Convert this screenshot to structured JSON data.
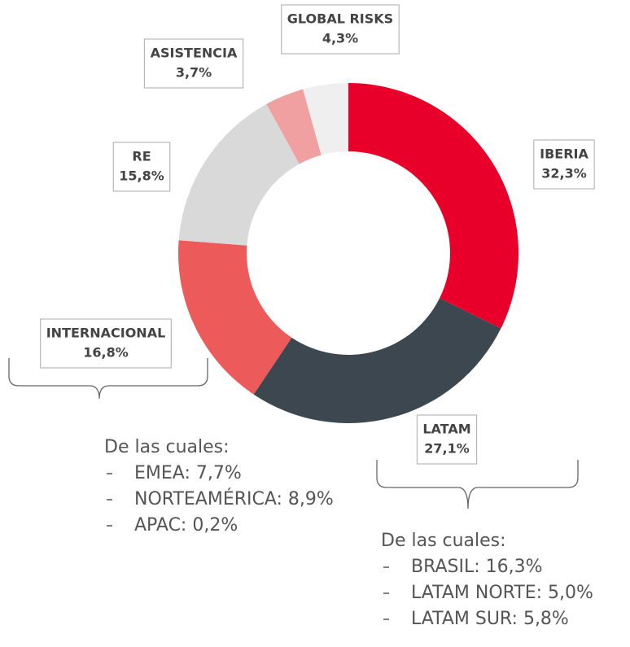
{
  "chart_data": {
    "type": "donut",
    "categories": [
      "IBERIA",
      "LATAM",
      "INTERNACIONAL",
      "RE",
      "ASISTENCIA",
      "GLOBAL RISKS"
    ],
    "values": [
      32.3,
      27.1,
      16.8,
      15.8,
      3.7,
      4.3
    ],
    "value_labels": [
      "32,3%",
      "27,1%",
      "16,8%",
      "15,8%",
      "3,7%",
      "4,3%"
    ],
    "colors": [
      "#e8002a",
      "#3d4750",
      "#ec5a5a",
      "#d9d9d9",
      "#f0a0a0",
      "#efefef"
    ],
    "breakdowns": [
      {
        "heading": "De las cuales:",
        "items": [
          "EMEA: 7,7%",
          "NORTEAMÉRICA: 8,9%",
          "APAC: 0,2%"
        ]
      },
      {
        "heading": "De las cuales:",
        "items": [
          "BRASIL: 16,3%",
          "LATAM NORTE: 5,0%",
          "LATAM SUR: 5,8%"
        ]
      }
    ]
  }
}
